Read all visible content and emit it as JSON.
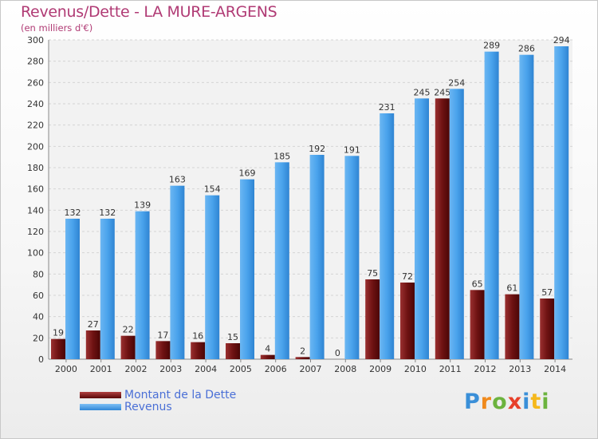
{
  "header": {
    "title": "Revenus/Dette - LA MURE-ARGENS",
    "subtitle": "(en milliers d'€)"
  },
  "legend": {
    "debt_label": "Montant de la Dette",
    "revenue_label": "Revenus"
  },
  "logo": {
    "text": "Proxiti"
  },
  "colors": {
    "debt": "#7a1a1a",
    "revenue": "#3d9ae8",
    "title": "#b03a74",
    "legend_text": "#4a6fd6"
  },
  "chart_data": {
    "type": "bar",
    "categories": [
      "2000",
      "2001",
      "2002",
      "2003",
      "2004",
      "2005",
      "2006",
      "2007",
      "2008",
      "2009",
      "2010",
      "2011",
      "2012",
      "2013",
      "2014"
    ],
    "series": [
      {
        "name": "Montant de la Dette",
        "values": [
          19,
          27,
          22,
          17,
          16,
          15,
          4,
          2,
          0,
          75,
          72,
          245,
          65,
          61,
          57
        ]
      },
      {
        "name": "Revenus",
        "values": [
          132,
          132,
          139,
          163,
          154,
          169,
          185,
          192,
          191,
          231,
          245,
          254,
          289,
          286,
          294
        ]
      }
    ],
    "yticks": [
      0,
      20,
      40,
      60,
      80,
      100,
      120,
      140,
      160,
      180,
      200,
      220,
      240,
      260,
      280,
      300
    ],
    "ylim": [
      0,
      300
    ],
    "grid": true,
    "legend_position": "bottom-left"
  }
}
